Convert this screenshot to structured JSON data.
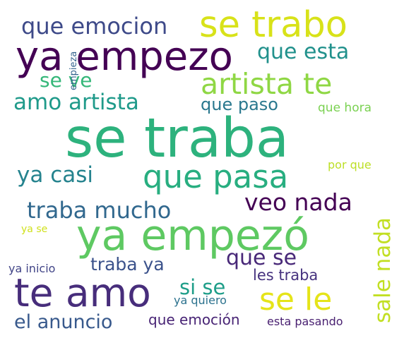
{
  "words": [
    {
      "text": "se traba",
      "color": "#2db27d"
    },
    {
      "text": "ya empezó",
      "color": "#5ec962"
    },
    {
      "text": "ya empezo",
      "color": "#440154"
    },
    {
      "text": "te amo",
      "color": "#472d7b"
    },
    {
      "text": "se trabo",
      "color": "#d8e219"
    },
    {
      "text": "que pasa",
      "color": "#28ae80"
    },
    {
      "text": "artista te",
      "color": "#8fd744"
    },
    {
      "text": "se le",
      "color": "#e5e419"
    },
    {
      "text": "veo nada",
      "color": "#440154"
    },
    {
      "text": "traba mucho",
      "color": "#31688e"
    },
    {
      "text": "amo artista",
      "color": "#1f9a8a"
    },
    {
      "text": "que emocion",
      "color": "#3e4a89"
    },
    {
      "text": "que esta",
      "color": "#21918c"
    },
    {
      "text": "ya casi",
      "color": "#25838e"
    },
    {
      "text": "sale nada",
      "color": "#c2df23"
    },
    {
      "text": "que se",
      "color": "#482878"
    },
    {
      "text": "si se",
      "color": "#1f9e89"
    },
    {
      "text": "traba ya",
      "color": "#3b528b"
    },
    {
      "text": "se ve",
      "color": "#35b779"
    },
    {
      "text": "el anuncio",
      "color": "#38598c"
    },
    {
      "text": "que paso",
      "color": "#2a788e"
    },
    {
      "text": "que emoción",
      "color": "#482475"
    },
    {
      "text": "les traba",
      "color": "#46327e"
    },
    {
      "text": "que hora",
      "color": "#7ad151"
    },
    {
      "text": "por que",
      "color": "#bddf26"
    },
    {
      "text": "esta pasando",
      "color": "#481f70"
    },
    {
      "text": "ya quiero",
      "color": "#2c728e"
    },
    {
      "text": "ya inicio",
      "color": "#414487"
    },
    {
      "text": "empieza",
      "color": "#33638d"
    },
    {
      "text": "ya se",
      "color": "#d0e11c"
    }
  ]
}
